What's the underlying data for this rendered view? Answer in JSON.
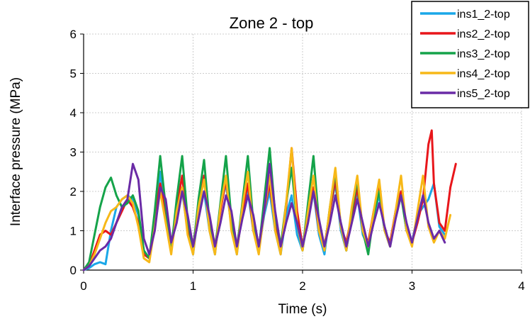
{
  "chart_data": {
    "type": "line",
    "title": "Zone 2 - top",
    "xlabel": "Time (s)",
    "ylabel": "Interface pressure (MPa)",
    "xlim": [
      0,
      4
    ],
    "ylim": [
      0,
      6
    ],
    "xticks": [
      "0",
      "1",
      "2",
      "3",
      "4"
    ],
    "yticks": [
      "0",
      "1",
      "2",
      "3",
      "4",
      "5",
      "6"
    ],
    "grid": true,
    "legend_position": "top-right",
    "series": [
      {
        "name": "ins1_2-top",
        "color": "#1AA7E8",
        "x": [
          0,
          0.05,
          0.1,
          0.15,
          0.2,
          0.25,
          0.3,
          0.35,
          0.4,
          0.45,
          0.5,
          0.55,
          0.6,
          0.65,
          0.7,
          0.75,
          0.8,
          0.85,
          0.9,
          0.95,
          1.0,
          1.05,
          1.1,
          1.15,
          1.2,
          1.25,
          1.3,
          1.35,
          1.4,
          1.45,
          1.5,
          1.55,
          1.6,
          1.65,
          1.7,
          1.75,
          1.8,
          1.85,
          1.9,
          1.95,
          2.0,
          2.05,
          2.1,
          2.15,
          2.2,
          2.25,
          2.3,
          2.35,
          2.4,
          2.45,
          2.5,
          2.55,
          2.6,
          2.65,
          2.7,
          2.75,
          2.8,
          2.85,
          2.9,
          2.95,
          3.0,
          3.05,
          3.1,
          3.15,
          3.2,
          3.25,
          3.3
        ],
        "y": [
          0,
          0.05,
          0.15,
          0.2,
          0.15,
          1.0,
          1.6,
          1.8,
          1.9,
          1.8,
          1.4,
          0.5,
          0.3,
          1.2,
          2.5,
          1.4,
          0.5,
          1.5,
          2.0,
          1.0,
          0.4,
          1.5,
          2.0,
          1.0,
          0.4,
          1.6,
          2.2,
          1.1,
          0.4,
          1.6,
          2.0,
          1.0,
          0.5,
          1.4,
          2.0,
          1.0,
          0.4,
          1.4,
          1.9,
          0.9,
          0.5,
          1.4,
          2.0,
          0.9,
          0.4,
          1.5,
          2.2,
          1.0,
          0.5,
          1.4,
          1.9,
          0.9,
          0.6,
          1.4,
          1.9,
          1.0,
          0.6,
          1.5,
          2.0,
          1.0,
          0.7,
          1.4,
          1.6,
          1.8,
          2.2,
          1.1,
          0.9
        ]
      },
      {
        "name": "ins2_2-top",
        "color": "#E8161B",
        "x": [
          0,
          0.05,
          0.1,
          0.15,
          0.2,
          0.25,
          0.3,
          0.35,
          0.4,
          0.45,
          0.5,
          0.55,
          0.6,
          0.65,
          0.7,
          0.75,
          0.8,
          0.85,
          0.9,
          0.95,
          1.0,
          1.05,
          1.1,
          1.15,
          1.2,
          1.25,
          1.3,
          1.35,
          1.4,
          1.45,
          1.5,
          1.55,
          1.6,
          1.65,
          1.7,
          1.75,
          1.8,
          1.85,
          1.9,
          1.95,
          2.0,
          2.05,
          2.1,
          2.15,
          2.2,
          2.25,
          2.3,
          2.35,
          2.4,
          2.45,
          2.5,
          2.55,
          2.6,
          2.65,
          2.7,
          2.75,
          2.8,
          2.85,
          2.9,
          2.95,
          3.0,
          3.05,
          3.1,
          3.15,
          3.18,
          3.2,
          3.25,
          3.3,
          3.35,
          3.4
        ],
        "y": [
          0,
          0.1,
          0.5,
          0.9,
          1.0,
          0.9,
          1.2,
          1.5,
          1.8,
          1.6,
          1.2,
          0.4,
          0.3,
          1.4,
          2.2,
          1.5,
          0.6,
          1.6,
          2.4,
          1.1,
          0.6,
          1.6,
          2.4,
          1.2,
          0.6,
          1.5,
          2.3,
          1.1,
          0.6,
          1.5,
          2.2,
          1.0,
          0.6,
          1.5,
          2.2,
          1.1,
          0.6,
          1.6,
          3.1,
          1.5,
          0.6,
          1.4,
          2.1,
          1.0,
          0.6,
          1.5,
          2.3,
          1.1,
          0.7,
          1.4,
          2.1,
          1.0,
          0.7,
          1.5,
          2.1,
          1.0,
          0.7,
          1.5,
          2.0,
          1.0,
          0.7,
          1.2,
          1.8,
          3.2,
          3.55,
          2.2,
          1.2,
          1.0,
          2.1,
          2.7
        ]
      },
      {
        "name": "ins3_2-top",
        "color": "#15A34A",
        "x": [
          0,
          0.05,
          0.1,
          0.15,
          0.2,
          0.25,
          0.3,
          0.35,
          0.4,
          0.45,
          0.5,
          0.55,
          0.6,
          0.65,
          0.7,
          0.75,
          0.8,
          0.85,
          0.9,
          0.95,
          1.0,
          1.05,
          1.1,
          1.15,
          1.2,
          1.25,
          1.3,
          1.35,
          1.4,
          1.45,
          1.5,
          1.55,
          1.6,
          1.65,
          1.7,
          1.75,
          1.8,
          1.85,
          1.9,
          1.95,
          2.0,
          2.05,
          2.1,
          2.15,
          2.2,
          2.25,
          2.3,
          2.35,
          2.4,
          2.45,
          2.5,
          2.55,
          2.6,
          2.65,
          2.7,
          2.75,
          2.8,
          2.85,
          2.9,
          2.95,
          3.0
        ],
        "y": [
          0,
          0.2,
          0.9,
          1.6,
          2.1,
          2.35,
          1.9,
          1.6,
          1.7,
          1.9,
          1.5,
          0.5,
          0.3,
          1.5,
          2.9,
          1.6,
          0.5,
          1.8,
          2.9,
          1.3,
          0.5,
          1.8,
          2.8,
          1.2,
          0.5,
          1.7,
          2.9,
          1.3,
          0.5,
          1.7,
          2.9,
          1.2,
          0.5,
          1.8,
          3.1,
          1.4,
          0.6,
          1.7,
          2.6,
          1.2,
          0.5,
          1.7,
          2.9,
          1.2,
          0.5,
          1.6,
          2.5,
          1.1,
          0.5,
          1.5,
          2.3,
          1.0,
          0.4,
          1.4,
          2.0,
          1.0,
          0.6,
          1.4,
          1.9,
          1.0,
          0.7
        ]
      },
      {
        "name": "ins4_2-top",
        "color": "#F7B818",
        "x": [
          0,
          0.05,
          0.1,
          0.15,
          0.2,
          0.25,
          0.3,
          0.35,
          0.4,
          0.45,
          0.5,
          0.55,
          0.6,
          0.65,
          0.7,
          0.75,
          0.8,
          0.85,
          0.9,
          0.95,
          1.0,
          1.05,
          1.1,
          1.15,
          1.2,
          1.25,
          1.3,
          1.35,
          1.4,
          1.45,
          1.5,
          1.55,
          1.6,
          1.65,
          1.7,
          1.75,
          1.8,
          1.85,
          1.9,
          1.95,
          2.0,
          2.05,
          2.1,
          2.15,
          2.2,
          2.25,
          2.3,
          2.35,
          2.4,
          2.45,
          2.5,
          2.55,
          2.6,
          2.65,
          2.7,
          2.75,
          2.8,
          2.85,
          2.9,
          2.95,
          3.0,
          3.05,
          3.1,
          3.15,
          3.2,
          3.25,
          3.3,
          3.35
        ],
        "y": [
          0,
          0.1,
          0.4,
          0.8,
          1.2,
          1.5,
          1.6,
          1.8,
          1.9,
          1.7,
          1.1,
          0.3,
          0.2,
          1.1,
          2.0,
          1.2,
          0.4,
          1.5,
          2.1,
          0.9,
          0.4,
          1.6,
          2.3,
          1.0,
          0.4,
          1.6,
          2.4,
          1.0,
          0.4,
          1.6,
          2.5,
          1.0,
          0.4,
          1.5,
          2.4,
          1.0,
          0.4,
          1.7,
          3.1,
          1.2,
          0.5,
          1.5,
          2.4,
          1.0,
          0.5,
          1.6,
          2.6,
          1.1,
          0.5,
          1.6,
          2.4,
          1.0,
          0.6,
          1.5,
          2.3,
          1.0,
          0.6,
          1.5,
          2.4,
          1.0,
          0.6,
          1.5,
          2.4,
          1.1,
          0.7,
          1.0,
          0.8,
          1.4
        ]
      },
      {
        "name": "ins5_2-top",
        "color": "#6A2BA6",
        "x": [
          0,
          0.05,
          0.1,
          0.15,
          0.2,
          0.25,
          0.3,
          0.35,
          0.4,
          0.45,
          0.5,
          0.55,
          0.6,
          0.65,
          0.7,
          0.75,
          0.8,
          0.85,
          0.9,
          0.95,
          1.0,
          1.05,
          1.1,
          1.15,
          1.2,
          1.25,
          1.3,
          1.35,
          1.4,
          1.45,
          1.5,
          1.55,
          1.6,
          1.65,
          1.7,
          1.75,
          1.8,
          1.85,
          1.9,
          1.95,
          2.0,
          2.05,
          2.1,
          2.15,
          2.2,
          2.25,
          2.3,
          2.35,
          2.4,
          2.45,
          2.5,
          2.55,
          2.6,
          2.65,
          2.7,
          2.75,
          2.8,
          2.85,
          2.9,
          2.95,
          3.0,
          3.05,
          3.1,
          3.15,
          3.2,
          3.25,
          3.3
        ],
        "y": [
          0,
          0.1,
          0.3,
          0.5,
          0.6,
          0.8,
          1.2,
          1.6,
          1.8,
          2.7,
          2.3,
          0.8,
          0.4,
          1.0,
          2.1,
          1.8,
          0.7,
          1.2,
          2.0,
          1.4,
          0.6,
          1.3,
          2.0,
          1.4,
          0.6,
          1.2,
          1.9,
          1.5,
          0.6,
          1.3,
          1.9,
          1.4,
          0.6,
          1.5,
          2.7,
          1.5,
          0.6,
          1.2,
          1.7,
          1.2,
          0.6,
          1.2,
          2.0,
          1.3,
          0.6,
          1.2,
          1.9,
          1.2,
          0.6,
          1.2,
          1.8,
          1.2,
          0.6,
          1.2,
          1.7,
          1.1,
          0.6,
          1.3,
          1.9,
          1.2,
          0.7,
          1.3,
          1.9,
          1.2,
          0.8,
          1.0,
          0.7
        ]
      }
    ]
  }
}
